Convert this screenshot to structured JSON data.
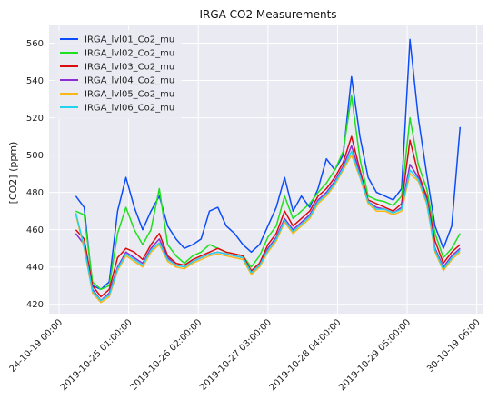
{
  "chart_data": {
    "type": "line",
    "title": "IRGA CO2 Measurements",
    "xlabel": "",
    "ylabel": "[CO2] (ppm)",
    "xlim": [
      "2019-10-23T20:24:00",
      "2019-10-30T08:24:00"
    ],
    "ylim": [
      415,
      570
    ],
    "grid": true,
    "legend_position": "upper left",
    "background": "#eaeaf2",
    "yticks": [
      420,
      440,
      460,
      480,
      500,
      520,
      540,
      560
    ],
    "xticks": [
      {
        "t": "2019-10-24T00:00:00",
        "label": "24-10-19 00:00"
      },
      {
        "t": "2019-10-25T01:00:00",
        "label": "2019-10-25 01:00:00"
      },
      {
        "t": "2019-10-26T02:00:00",
        "label": "2019-10-26 02:00:00"
      },
      {
        "t": "2019-10-27T03:00:00",
        "label": "2019-10-27 03:00:00"
      },
      {
        "t": "2019-10-28T04:00:00",
        "label": "2019-10-28 04:00:00"
      },
      {
        "t": "2019-10-29T05:00:00",
        "label": "2019-10-29 05:00:00"
      },
      {
        "t": "2019-10-30T06:00:00",
        "label": "30-10-19 06:00"
      }
    ],
    "x": [
      "2019-10-24T06:00:00",
      "2019-10-24T09:00:00",
      "2019-10-24T12:00:00",
      "2019-10-24T15:00:00",
      "2019-10-24T18:00:00",
      "2019-10-24T21:00:00",
      "2019-10-25T00:00:00",
      "2019-10-25T03:00:00",
      "2019-10-25T06:00:00",
      "2019-10-25T09:00:00",
      "2019-10-25T12:00:00",
      "2019-10-25T15:00:00",
      "2019-10-25T18:00:00",
      "2019-10-25T21:00:00",
      "2019-10-26T00:00:00",
      "2019-10-26T03:00:00",
      "2019-10-26T06:00:00",
      "2019-10-26T09:00:00",
      "2019-10-26T12:00:00",
      "2019-10-26T15:00:00",
      "2019-10-26T18:00:00",
      "2019-10-26T21:00:00",
      "2019-10-27T00:00:00",
      "2019-10-27T03:00:00",
      "2019-10-27T06:00:00",
      "2019-10-27T09:00:00",
      "2019-10-27T12:00:00",
      "2019-10-27T15:00:00",
      "2019-10-27T18:00:00",
      "2019-10-27T21:00:00",
      "2019-10-28T00:00:00",
      "2019-10-28T03:00:00",
      "2019-10-28T06:00:00",
      "2019-10-28T09:00:00",
      "2019-10-28T12:00:00",
      "2019-10-28T15:00:00",
      "2019-10-28T18:00:00",
      "2019-10-28T21:00:00",
      "2019-10-29T00:00:00",
      "2019-10-29T03:00:00",
      "2019-10-29T06:00:00",
      "2019-10-29T09:00:00",
      "2019-10-29T12:00:00",
      "2019-10-29T15:00:00",
      "2019-10-29T18:00:00",
      "2019-10-29T21:00:00",
      "2019-10-30T00:00:00"
    ],
    "series": [
      {
        "name": "IRGA_lvl01_Co2_mu",
        "color": "#0c4dfa",
        "values": [
          478,
          472,
          430,
          428,
          432,
          470,
          488,
          472,
          460,
          470,
          478,
          462,
          455,
          450,
          452,
          455,
          470,
          472,
          462,
          458,
          452,
          448,
          452,
          462,
          472,
          488,
          470,
          478,
          472,
          482,
          498,
          492,
          500,
          542,
          510,
          488,
          480,
          478,
          476,
          482,
          562,
          520,
          490,
          462,
          450,
          462,
          515
        ]
      },
      {
        "name": "IRGA_lvl02_Co2_mu",
        "color": "#1fe01f",
        "values": [
          470,
          468,
          432,
          428,
          430,
          458,
          472,
          460,
          452,
          460,
          482,
          452,
          446,
          442,
          446,
          448,
          452,
          450,
          448,
          447,
          446,
          440,
          446,
          456,
          462,
          478,
          466,
          470,
          474,
          480,
          485,
          492,
          502,
          532,
          498,
          478,
          476,
          475,
          473,
          478,
          520,
          495,
          482,
          458,
          445,
          450,
          458
        ]
      },
      {
        "name": "IRGA_lvl03_Co2_mu",
        "color": "#dd0c0c",
        "values": [
          460,
          455,
          430,
          424,
          428,
          445,
          450,
          448,
          444,
          452,
          458,
          446,
          442,
          441,
          444,
          446,
          448,
          450,
          448,
          447,
          446,
          438,
          442,
          452,
          458,
          470,
          462,
          466,
          470,
          478,
          482,
          488,
          496,
          510,
          492,
          476,
          474,
          472,
          470,
          474,
          508,
          490,
          478,
          454,
          442,
          448,
          452
        ]
      },
      {
        "name": "IRGA_lvl04_Co2_mu",
        "color": "#8d2dd6",
        "values": [
          458,
          452,
          428,
          422,
          426,
          440,
          448,
          445,
          442,
          450,
          455,
          445,
          441,
          440,
          443,
          445,
          447,
          448,
          447,
          446,
          445,
          437,
          441,
          450,
          456,
          466,
          460,
          464,
          468,
          476,
          480,
          486,
          494,
          505,
          490,
          475,
          472,
          471,
          469,
          472,
          495,
          488,
          476,
          450,
          440,
          446,
          450
        ]
      },
      {
        "name": "IRGA_lvl05_Co2_mu",
        "color": "#f9b816",
        "values": [
          468,
          450,
          426,
          421,
          424,
          438,
          446,
          443,
          440,
          448,
          452,
          443,
          440,
          439,
          442,
          444,
          446,
          447,
          446,
          445,
          444,
          436,
          440,
          448,
          454,
          464,
          458,
          462,
          466,
          474,
          478,
          484,
          492,
          500,
          488,
          474,
          470,
          470,
          468,
          470,
          490,
          486,
          474,
          448,
          438,
          444,
          448
        ]
      },
      {
        "name": "IRGA_lvl06_Co2_mu",
        "color": "#22d3ee",
        "values": [
          469,
          451,
          427,
          422,
          425,
          439,
          447,
          444,
          441,
          449,
          453,
          444,
          441,
          440,
          443,
          445,
          447,
          448,
          447,
          446,
          445,
          437,
          441,
          449,
          455,
          465,
          459,
          463,
          467,
          475,
          479,
          485,
          493,
          502,
          489,
          475,
          471,
          471,
          469,
          471,
          492,
          487,
          475,
          449,
          439,
          445,
          449
        ]
      }
    ]
  }
}
